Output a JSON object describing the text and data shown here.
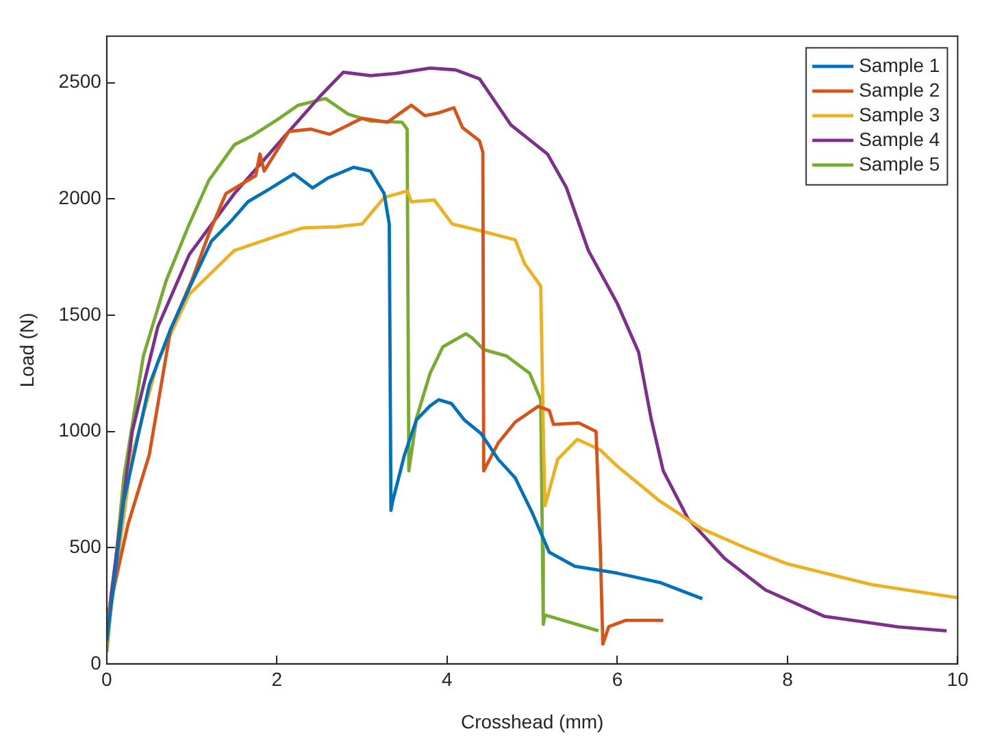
{
  "chart_data": {
    "type": "line",
    "xlabel": "Crosshead (mm)",
    "ylabel": "Load (N)",
    "xlim": [
      0,
      10
    ],
    "ylim": [
      0,
      2700
    ],
    "xticks": [
      0,
      2,
      4,
      6,
      8,
      10
    ],
    "yticks": [
      0,
      500,
      1000,
      1500,
      2000,
      2500
    ],
    "legend": "top right",
    "grid": false,
    "marker": "none",
    "line_style": "solid",
    "series": [
      {
        "name": "Sample 1",
        "color": "#0072bd",
        "x": [
          0,
          0.2,
          0.5,
          0.75,
          1.0,
          1.23,
          1.45,
          1.66,
          1.9,
          2.2,
          2.42,
          2.6,
          2.9,
          3.1,
          3.26,
          3.32,
          3.34,
          3.36,
          3.5,
          3.64,
          3.8,
          3.9,
          4.05,
          4.2,
          4.4,
          4.6,
          4.8,
          5.0,
          5.2,
          5.5,
          6.0,
          6.5,
          7.0
        ],
        "values": [
          100,
          700,
          1200,
          1440,
          1640,
          1818,
          1900,
          1988,
          2040,
          2108,
          2047,
          2090,
          2136,
          2120,
          2023,
          1892,
          660,
          700,
          900,
          1050,
          1110,
          1136,
          1120,
          1050,
          990,
          880,
          800,
          650,
          480,
          420,
          390,
          350,
          280
        ]
      },
      {
        "name": "Sample 2",
        "color": "#d95319",
        "x": [
          0,
          0.25,
          0.5,
          0.75,
          1.0,
          1.2,
          1.4,
          1.75,
          1.8,
          1.85,
          2.14,
          2.4,
          2.62,
          3.0,
          3.3,
          3.58,
          3.74,
          3.9,
          4.08,
          4.18,
          4.38,
          4.42,
          4.43,
          4.6,
          4.8,
          5.07,
          5.2,
          5.25,
          5.55,
          5.75,
          5.8,
          5.83,
          5.9,
          6.1,
          6.54
        ],
        "values": [
          187,
          600,
          900,
          1437,
          1650,
          1850,
          2023,
          2100,
          2193,
          2120,
          2290,
          2300,
          2278,
          2347,
          2330,
          2403,
          2358,
          2370,
          2392,
          2307,
          2250,
          2200,
          830,
          950,
          1040,
          1108,
          1090,
          1030,
          1036,
          1000,
          500,
          85,
          160,
          187,
          187
        ]
      },
      {
        "name": "Sample 3",
        "color": "#edb120",
        "x": [
          0,
          0.3,
          0.6,
          0.97,
          1.5,
          2.0,
          2.3,
          2.7,
          3.0,
          3.26,
          3.53,
          3.58,
          3.85,
          4.06,
          4.38,
          4.8,
          4.91,
          5.1,
          5.13,
          5.15,
          5.3,
          5.53,
          5.8,
          6.0,
          6.5,
          7.0,
          7.5,
          8.0,
          9.0,
          10.0
        ],
        "values": [
          100,
          900,
          1300,
          1590,
          1778,
          1840,
          1875,
          1880,
          1892,
          2006,
          2034,
          1988,
          1995,
          1892,
          1864,
          1824,
          1722,
          1625,
          1000,
          680,
          880,
          966,
          920,
          850,
          700,
          580,
          500,
          430,
          340,
          284
        ]
      },
      {
        "name": "Sample 4",
        "color": "#7e2f8e",
        "x": [
          0,
          0.3,
          0.6,
          0.97,
          1.5,
          2.14,
          2.51,
          2.78,
          3.1,
          3.4,
          3.8,
          4.1,
          4.38,
          4.75,
          5.18,
          5.4,
          5.66,
          6.0,
          6.25,
          6.4,
          6.54,
          6.83,
          7.26,
          7.74,
          8.43,
          9.3,
          9.87
        ],
        "values": [
          150,
          1000,
          1450,
          1761,
          2023,
          2290,
          2443,
          2545,
          2530,
          2540,
          2563,
          2555,
          2517,
          2318,
          2193,
          2050,
          1778,
          1550,
          1341,
          1050,
          830,
          625,
          454,
          318,
          205,
          159,
          142
        ]
      },
      {
        "name": "Sample 5",
        "color": "#77ac30",
        "x": [
          0,
          0.2,
          0.43,
          0.7,
          0.97,
          1.2,
          1.5,
          1.7,
          2.0,
          2.25,
          2.57,
          2.84,
          3.1,
          3.47,
          3.53,
          3.55,
          3.64,
          3.8,
          3.95,
          4.22,
          4.3,
          4.43,
          4.7,
          4.97,
          5.1,
          5.12,
          5.13,
          5.15,
          5.78
        ],
        "values": [
          50,
          800,
          1324,
          1650,
          1892,
          2080,
          2233,
          2270,
          2340,
          2403,
          2432,
          2364,
          2335,
          2330,
          2300,
          830,
          1057,
          1250,
          1364,
          1420,
          1400,
          1352,
          1324,
          1250,
          1136,
          500,
          170,
          210,
          142
        ]
      }
    ]
  }
}
